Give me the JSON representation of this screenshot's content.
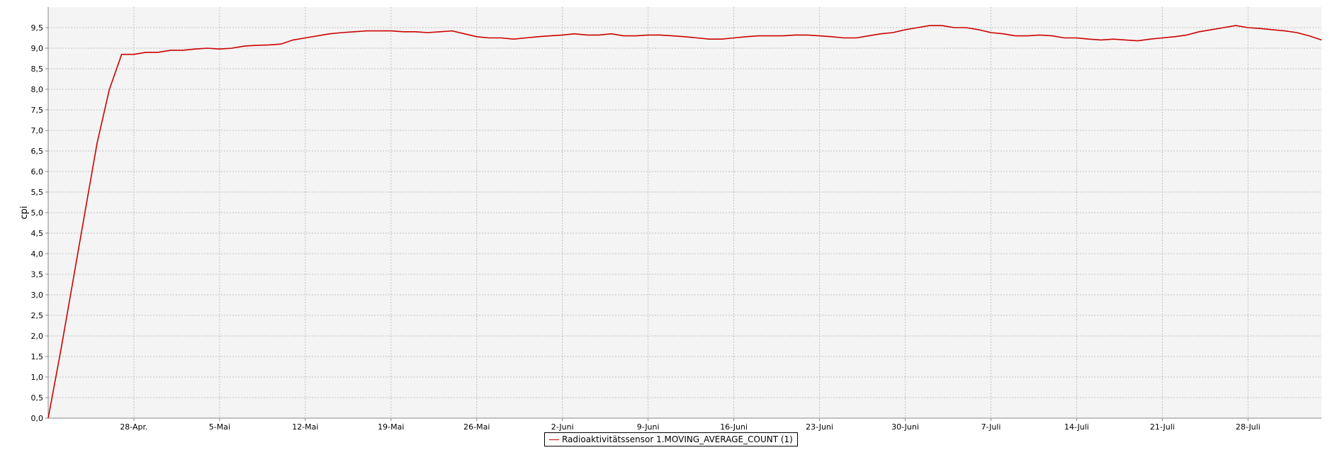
{
  "chart_data": {
    "type": "line",
    "ylabel": "cpi",
    "xlabel": "",
    "ylim": [
      0,
      10.0
    ],
    "yticks": [
      "0,0",
      "0,5",
      "1,0",
      "1,5",
      "2,0",
      "2,5",
      "3,0",
      "3,5",
      "4,0",
      "4,5",
      "5,0",
      "5,5",
      "6,0",
      "6,5",
      "7,0",
      "7,5",
      "8,0",
      "8,5",
      "9,0",
      "9,5"
    ],
    "xlim": [
      "2024-04-21",
      "2024-08-03"
    ],
    "xticks": [
      {
        "date": "2024-04-28",
        "label": "28-Apr."
      },
      {
        "date": "2024-05-05",
        "label": "5-Mai"
      },
      {
        "date": "2024-05-12",
        "label": "12-Mai"
      },
      {
        "date": "2024-05-19",
        "label": "19-Mai"
      },
      {
        "date": "2024-05-26",
        "label": "26-Mai"
      },
      {
        "date": "2024-06-02",
        "label": "2-Juni"
      },
      {
        "date": "2024-06-09",
        "label": "9-Juni"
      },
      {
        "date": "2024-06-16",
        "label": "16-Juni"
      },
      {
        "date": "2024-06-23",
        "label": "23-Juni"
      },
      {
        "date": "2024-06-30",
        "label": "30-Juni"
      },
      {
        "date": "2024-07-07",
        "label": "7-Juli"
      },
      {
        "date": "2024-07-14",
        "label": "14-Juli"
      },
      {
        "date": "2024-07-21",
        "label": "21-Juli"
      },
      {
        "date": "2024-07-28",
        "label": "28-Juli"
      }
    ],
    "grid": true,
    "legend_position": "bottom-center",
    "series": [
      {
        "name": "Radioaktivitätssensor 1.MOVING_AVERAGE_COUNT (1)",
        "color": "#cc0000",
        "x": [
          "2024-04-21",
          "2024-04-22",
          "2024-04-23",
          "2024-04-24",
          "2024-04-25",
          "2024-04-26",
          "2024-04-27",
          "2024-04-28",
          "2024-04-29",
          "2024-04-30",
          "2024-05-01",
          "2024-05-02",
          "2024-05-03",
          "2024-05-04",
          "2024-05-05",
          "2024-05-06",
          "2024-05-07",
          "2024-05-08",
          "2024-05-09",
          "2024-05-10",
          "2024-05-11",
          "2024-05-12",
          "2024-05-13",
          "2024-05-14",
          "2024-05-15",
          "2024-05-16",
          "2024-05-17",
          "2024-05-18",
          "2024-05-19",
          "2024-05-20",
          "2024-05-21",
          "2024-05-22",
          "2024-05-23",
          "2024-05-24",
          "2024-05-25",
          "2024-05-26",
          "2024-05-27",
          "2024-05-28",
          "2024-05-29",
          "2024-05-30",
          "2024-05-31",
          "2024-06-01",
          "2024-06-02",
          "2024-06-03",
          "2024-06-04",
          "2024-06-05",
          "2024-06-06",
          "2024-06-07",
          "2024-06-08",
          "2024-06-09",
          "2024-06-10",
          "2024-06-11",
          "2024-06-12",
          "2024-06-13",
          "2024-06-14",
          "2024-06-15",
          "2024-06-16",
          "2024-06-17",
          "2024-06-18",
          "2024-06-19",
          "2024-06-20",
          "2024-06-21",
          "2024-06-22",
          "2024-06-23",
          "2024-06-24",
          "2024-06-25",
          "2024-06-26",
          "2024-06-27",
          "2024-06-28",
          "2024-06-29",
          "2024-06-30",
          "2024-07-01",
          "2024-07-02",
          "2024-07-03",
          "2024-07-04",
          "2024-07-05",
          "2024-07-06",
          "2024-07-07",
          "2024-07-08",
          "2024-07-09",
          "2024-07-10",
          "2024-07-11",
          "2024-07-12",
          "2024-07-13",
          "2024-07-14",
          "2024-07-15",
          "2024-07-16",
          "2024-07-17",
          "2024-07-18",
          "2024-07-19",
          "2024-07-20",
          "2024-07-21",
          "2024-07-22",
          "2024-07-23",
          "2024-07-24",
          "2024-07-25",
          "2024-07-26",
          "2024-07-27",
          "2024-07-28",
          "2024-07-29",
          "2024-07-30",
          "2024-07-31",
          "2024-08-01",
          "2024-08-02",
          "2024-08-03"
        ],
        "y": [
          0.0,
          1.6,
          3.3,
          5.0,
          6.7,
          8.0,
          8.85,
          8.85,
          8.9,
          8.9,
          8.95,
          8.95,
          8.98,
          9.0,
          8.98,
          9.0,
          9.05,
          9.07,
          9.08,
          9.1,
          9.2,
          9.25,
          9.3,
          9.35,
          9.38,
          9.4,
          9.42,
          9.42,
          9.42,
          9.4,
          9.4,
          9.38,
          9.4,
          9.42,
          9.35,
          9.28,
          9.25,
          9.25,
          9.22,
          9.25,
          9.28,
          9.3,
          9.32,
          9.35,
          9.32,
          9.32,
          9.35,
          9.3,
          9.3,
          9.32,
          9.32,
          9.3,
          9.28,
          9.25,
          9.22,
          9.22,
          9.25,
          9.28,
          9.3,
          9.3,
          9.3,
          9.32,
          9.32,
          9.3,
          9.28,
          9.25,
          9.25,
          9.3,
          9.35,
          9.38,
          9.45,
          9.5,
          9.55,
          9.55,
          9.5,
          9.5,
          9.45,
          9.38,
          9.35,
          9.3,
          9.3,
          9.32,
          9.3,
          9.25,
          9.25,
          9.22,
          9.2,
          9.22,
          9.2,
          9.18,
          9.22,
          9.25,
          9.28,
          9.32,
          9.4,
          9.45,
          9.5,
          9.55,
          9.5,
          9.48,
          9.45,
          9.42,
          9.38,
          9.3,
          9.2
        ]
      }
    ]
  }
}
